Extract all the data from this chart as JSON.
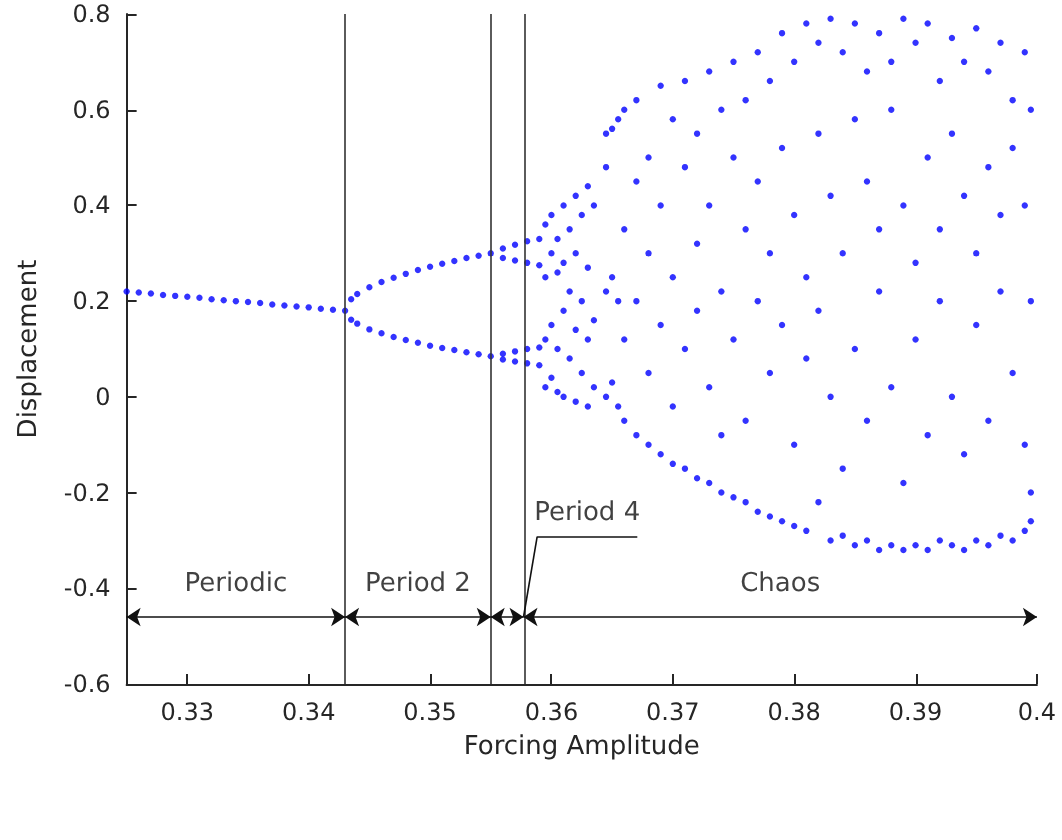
{
  "chart_data": {
    "type": "scatter",
    "xlabel": "Forcing Amplitude",
    "ylabel": "Displacement",
    "xlim": [
      0.325,
      0.4
    ],
    "ylim": [
      -0.6,
      0.8
    ],
    "xticks": [
      0.33,
      0.34,
      0.35,
      0.36,
      0.37,
      0.38,
      0.39,
      0.4
    ],
    "yticks": [
      -0.6,
      -0.4,
      -0.2,
      0,
      0.2,
      0.4,
      0.6,
      0.8
    ],
    "marker": "circle",
    "ref_lines": [
      {
        "axis": "x",
        "value": 0.343
      },
      {
        "axis": "x",
        "value": 0.355
      },
      {
        "axis": "x",
        "value": 0.3577
      }
    ],
    "annotations": [
      "Periodic",
      "Period 2",
      {
        "text": "Period 4",
        "x": 0.3577,
        "y": -0.46
      },
      "Chaos"
    ],
    "series": [
      {
        "color": "#0000ff",
        "x": [
          0.325,
          0.326,
          0.327,
          0.328,
          0.329,
          0.33,
          0.331,
          0.332,
          0.333,
          0.334,
          0.335,
          0.336,
          0.337,
          0.338,
          0.339,
          0.34,
          0.341,
          0.342,
          0.343
        ],
        "values": [
          0.22,
          0.218,
          0.216,
          0.213,
          0.211,
          0.209,
          0.207,
          0.204,
          0.202,
          0.2,
          0.198,
          0.196,
          0.193,
          0.191,
          0.189,
          0.187,
          0.184,
          0.182,
          0.18
        ]
      },
      {
        "color": "#0000ff",
        "x": [
          0.3435,
          0.344,
          0.345,
          0.346,
          0.347,
          0.348,
          0.349,
          0.35,
          0.351,
          0.352,
          0.353,
          0.354,
          0.355,
          0.3435,
          0.344,
          0.345,
          0.346,
          0.347,
          0.348,
          0.349,
          0.35,
          0.351,
          0.352,
          0.353,
          0.354,
          0.355
        ],
        "values": [
          0.204,
          0.215,
          0.229,
          0.24,
          0.249,
          0.257,
          0.265,
          0.272,
          0.278,
          0.284,
          0.29,
          0.295,
          0.3,
          0.161,
          0.153,
          0.141,
          0.133,
          0.125,
          0.119,
          0.113,
          0.107,
          0.102,
          0.098,
          0.093,
          0.089,
          0.085
        ]
      },
      {
        "color": "#0000ff",
        "x": [
          0.356,
          0.356,
          0.357,
          0.357,
          0.358,
          0.358,
          0.359,
          0.359,
          0.356,
          0.356,
          0.357,
          0.357,
          0.358,
          0.358,
          0.359,
          0.359
        ],
        "values": [
          0.31,
          0.29,
          0.318,
          0.285,
          0.325,
          0.28,
          0.33,
          0.275,
          0.09,
          0.078,
          0.095,
          0.074,
          0.1,
          0.07,
          0.103,
          0.066
        ]
      },
      {
        "color": "#0000ff",
        "x": [
          0.3595,
          0.3595,
          0.3595,
          0.3595,
          0.36,
          0.36,
          0.36,
          0.36,
          0.3605,
          0.3605,
          0.3605,
          0.3605,
          0.361,
          0.361,
          0.361,
          0.361,
          0.3615,
          0.3615,
          0.3615,
          0.362,
          0.362,
          0.362,
          0.362,
          0.3625,
          0.3625,
          0.3625,
          0.363,
          0.363,
          0.363,
          0.363,
          0.3635,
          0.3635,
          0.3635,
          0.3645,
          0.3645,
          0.3645,
          0.3645,
          0.365,
          0.365,
          0.365,
          0.3655,
          0.3655,
          0.3655
        ],
        "values": [
          0.36,
          0.25,
          0.12,
          0.02,
          0.38,
          0.3,
          0.15,
          0.04,
          0.26,
          0.33,
          0.01,
          0.1,
          0.4,
          0.28,
          0.18,
          0,
          0.35,
          0.22,
          0.08,
          0.42,
          0.3,
          0.14,
          -0.01,
          0.38,
          0.2,
          0.05,
          0.44,
          0.27,
          0.12,
          -0.02,
          0.4,
          0.16,
          0.02,
          0.55,
          0.48,
          0.22,
          0,
          0.56,
          0.25,
          0.03,
          0.58,
          0.2,
          -0.02
        ]
      },
      {
        "color": "#0000ff",
        "x": [
          0.366,
          0.366,
          0.366,
          0.366,
          0.367,
          0.367,
          0.367,
          0.367,
          0.368,
          0.368,
          0.368,
          0.368,
          0.369,
          0.369,
          0.369,
          0.369,
          0.37,
          0.37,
          0.37,
          0.37,
          0.371,
          0.371,
          0.371,
          0.371,
          0.372,
          0.372,
          0.372,
          0.372,
          0.373,
          0.373,
          0.373,
          0.373,
          0.374,
          0.374,
          0.374,
          0.374,
          0.375,
          0.375,
          0.375,
          0.375,
          0.376,
          0.376,
          0.376,
          0.376,
          0.377,
          0.377,
          0.377,
          0.377,
          0.378,
          0.378,
          0.378,
          0.378,
          0.379,
          0.379,
          0.379,
          0.379,
          0.38,
          0.38,
          0.38,
          0.38,
          0.381,
          0.381,
          0.381,
          0.381,
          0.382,
          0.382,
          0.382,
          0.382
        ],
        "values": [
          0.6,
          0.35,
          0.12,
          -0.05,
          0.62,
          0.45,
          0.2,
          -0.08,
          0.5,
          0.3,
          0.05,
          -0.1,
          0.65,
          0.4,
          0.15,
          -0.12,
          0.58,
          0.25,
          -0.02,
          -0.14,
          0.66,
          0.48,
          0.1,
          -0.15,
          0.55,
          0.32,
          0.18,
          -0.17,
          0.68,
          0.4,
          0.02,
          -0.18,
          0.6,
          0.22,
          -0.08,
          -0.2,
          0.7,
          0.5,
          0.12,
          -0.21,
          0.62,
          0.35,
          -0.05,
          -0.22,
          0.72,
          0.45,
          0.2,
          -0.24,
          0.66,
          0.3,
          0.05,
          -0.25,
          0.76,
          0.52,
          0.15,
          -0.26,
          0.7,
          0.38,
          -0.1,
          -0.27,
          0.78,
          0.25,
          0.08,
          -0.28,
          0.74,
          0.55,
          0.18,
          -0.22
        ]
      },
      {
        "color": "#0000ff",
        "x": [
          0.383,
          0.383,
          0.383,
          0.383,
          0.384,
          0.384,
          0.384,
          0.384,
          0.385,
          0.385,
          0.385,
          0.385,
          0.386,
          0.386,
          0.386,
          0.386,
          0.387,
          0.387,
          0.387,
          0.387,
          0.388,
          0.388,
          0.388,
          0.388,
          0.389,
          0.389,
          0.389,
          0.389,
          0.39,
          0.39,
          0.39,
          0.39,
          0.391,
          0.391,
          0.391,
          0.391,
          0.392,
          0.392,
          0.392,
          0.392,
          0.393,
          0.393,
          0.393,
          0.393,
          0.394,
          0.394,
          0.394,
          0.394,
          0.395,
          0.395,
          0.395,
          0.395,
          0.396,
          0.396,
          0.396,
          0.396,
          0.397,
          0.397,
          0.397,
          0.397,
          0.398,
          0.398,
          0.398,
          0.398,
          0.399,
          0.399,
          0.399,
          0.399,
          0.3995,
          0.3995,
          0.3995,
          0.3995
        ],
        "values": [
          0.79,
          0.42,
          0,
          -0.3,
          0.72,
          0.3,
          -0.15,
          -0.29,
          0.78,
          0.58,
          0.1,
          -0.31,
          0.68,
          0.45,
          -0.05,
          -0.3,
          0.76,
          0.35,
          0.22,
          -0.32,
          0.7,
          0.6,
          0.02,
          -0.31,
          0.79,
          0.4,
          -0.18,
          -0.32,
          0.74,
          0.28,
          0.12,
          -0.31,
          0.78,
          0.5,
          -0.08,
          -0.32,
          0.66,
          0.35,
          0.2,
          -0.3,
          0.75,
          0.55,
          0,
          -0.31,
          0.7,
          0.42,
          -0.12,
          -0.32,
          0.77,
          0.3,
          0.15,
          -0.3,
          0.68,
          0.48,
          -0.05,
          -0.31,
          0.74,
          0.38,
          0.22,
          -0.29,
          0.62,
          0.52,
          0.05,
          -0.3,
          0.72,
          0.4,
          -0.1,
          -0.28,
          0.6,
          0.2,
          -0.2,
          -0.26
        ]
      }
    ]
  }
}
